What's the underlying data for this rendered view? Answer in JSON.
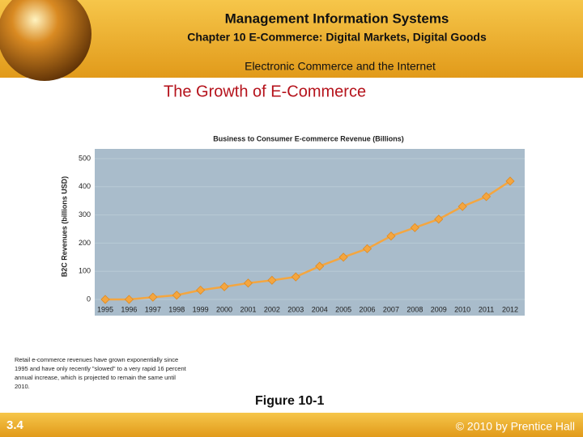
{
  "header": {
    "title": "Management Information Systems",
    "subtitle": "Chapter 10 E-Commerce: Digital Markets, Digital Goods",
    "section": "Electronic Commerce and the Internet"
  },
  "slide_title": "The Growth of E-Commerce",
  "chart_data": {
    "type": "line",
    "title": "Business to Consumer E-commerce Revenue (Billions)",
    "y_label": "B2C Revenues (billions USD)",
    "categories": [
      "1995",
      "1996",
      "1997",
      "1998",
      "1999",
      "2000",
      "2001",
      "2002",
      "2003",
      "2004",
      "2005",
      "2006",
      "2007",
      "2008",
      "2009",
      "2010",
      "2011",
      "2012"
    ],
    "values": [
      0,
      0,
      8,
      15,
      33,
      45,
      58,
      68,
      80,
      118,
      150,
      180,
      225,
      255,
      285,
      330,
      365,
      420
    ],
    "color": "#f4a640",
    "ylim": [
      0,
      500
    ],
    "yticks": [
      0,
      100,
      200,
      300,
      400,
      500
    ],
    "grid": true
  },
  "note": "Retail e-commerce revenues have grown exponentially since 1995 and have only recently \"slowed\" to a very rapid 16 percent annual increase, which is projected to remain the same until 2010.",
  "figure_label": "Figure 10-1",
  "footer": {
    "page": "3.4",
    "copyright": "© 2010 by Prentice Hall"
  }
}
